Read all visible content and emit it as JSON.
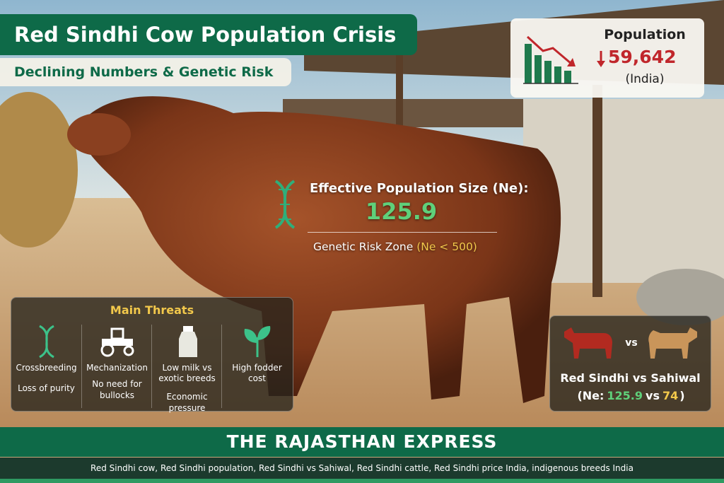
{
  "header": {
    "title": "Red Sindhi Cow Population Crisis",
    "subtitle": "Declining Numbers & Genetic Risk"
  },
  "population": {
    "label": "Population",
    "value": "59,642",
    "region": "(India)"
  },
  "effective_population": {
    "label": "Effective Population Size (Ne):",
    "value": "125.9",
    "risk": "Genetic Risk Zone",
    "risk_condition": "(Ne < 500)"
  },
  "threats": {
    "title": "Main Threats",
    "items": [
      {
        "label": "Crossbreeding",
        "detail": "Loss of purity"
      },
      {
        "label": "Mechanization",
        "detail": "No need for bullocks"
      },
      {
        "label": "Low milk vs exotic breeds",
        "detail": "Economic pressure"
      },
      {
        "label": "High fodder cost"
      }
    ]
  },
  "comparison": {
    "vs": "vs",
    "title": "Red Sindhi vs Sahiwal",
    "ne_open": "(Ne:",
    "red_sindhi": "125.9",
    "joiner": "vs",
    "sahiwal": "74",
    "ne_close": ")"
  },
  "footer": {
    "brand": "THE RAJASTHAN EXPRESS",
    "tags": "Red Sindhi cow, Red Sindhi population, Red Sindhi vs Sahiwal, Red Sindhi cattle, Red Sindhi price India, indigenous breeds India"
  }
}
